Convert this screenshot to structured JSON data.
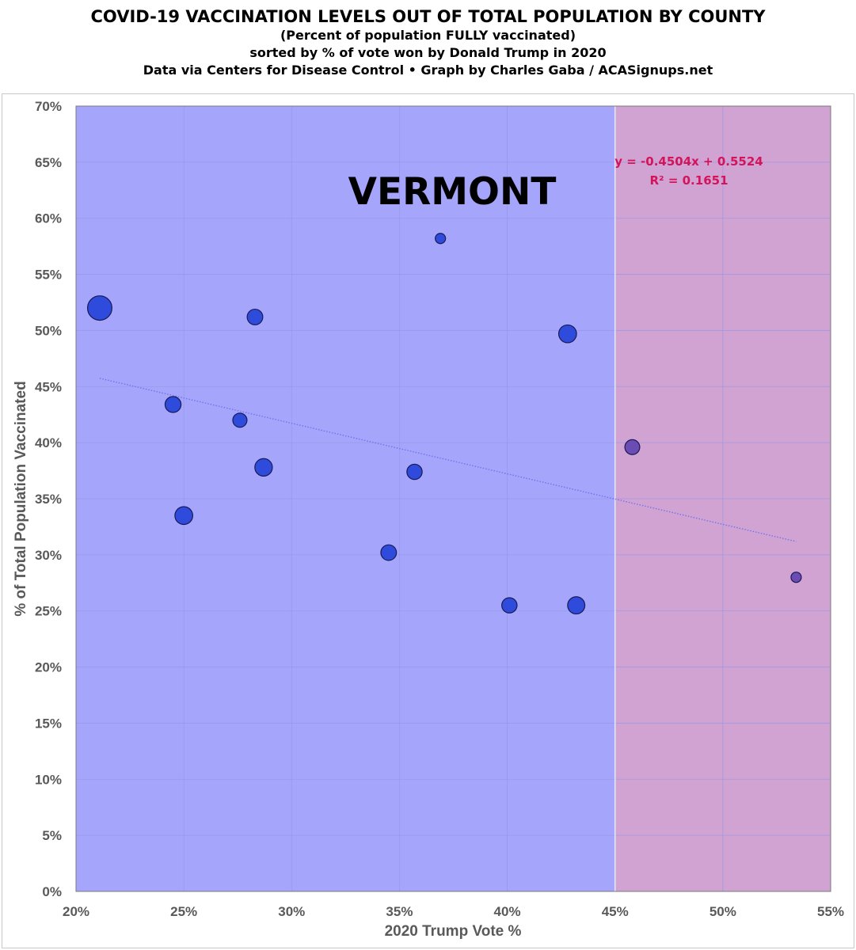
{
  "titles": {
    "line1": "COVID-19 VACCINATION LEVELS OUT OF TOTAL POPULATION BY COUNTY",
    "line2": "(Percent of population FULLY vaccinated)",
    "line3": "sorted by % of vote won by Donald Trump in 2020",
    "line4": "Data via Centers for Disease Control • Graph by Charles Gaba / ACASignups.net"
  },
  "chart_data": {
    "type": "scatter",
    "title": "COVID-19 VACCINATION LEVELS OUT OF TOTAL POPULATION BY COUNTY",
    "annotation": "VERMONT",
    "xlabel": "2020 Trump Vote %",
    "ylabel": "% of Total Population Vaccinated",
    "xlim": [
      0.2,
      0.55
    ],
    "ylim": [
      0,
      0.7
    ],
    "x_ticks": [
      0.2,
      0.25,
      0.3,
      0.35,
      0.4,
      0.45,
      0.5,
      0.55
    ],
    "x_tick_labels": [
      "20%",
      "25%",
      "30%",
      "35%",
      "40%",
      "45%",
      "50%",
      "55%"
    ],
    "y_ticks": [
      0,
      0.05,
      0.1,
      0.15,
      0.2,
      0.25,
      0.3,
      0.35,
      0.4,
      0.45,
      0.5,
      0.55,
      0.6,
      0.65,
      0.7
    ],
    "y_tick_labels": [
      "0%",
      "5%",
      "10%",
      "15%",
      "20%",
      "25%",
      "30%",
      "35%",
      "40%",
      "45%",
      "50%",
      "55%",
      "60%",
      "65%",
      "70%"
    ],
    "grid": true,
    "regions": [
      {
        "from": 0.2,
        "to": 0.45,
        "color": "#a5a5fb"
      },
      {
        "from": 0.45,
        "to": 0.55,
        "color": "#d1a3d2"
      }
    ],
    "bubble_colors": {
      "blue": "#2f4bdc",
      "purple": "#6a4cb4"
    },
    "points": [
      {
        "x": 0.211,
        "y": 0.52,
        "size": 5.6
      },
      {
        "x": 0.245,
        "y": 0.434,
        "size": 2.4
      },
      {
        "x": 0.25,
        "y": 0.335,
        "size": 3.0
      },
      {
        "x": 0.276,
        "y": 0.42,
        "size": 1.9
      },
      {
        "x": 0.283,
        "y": 0.512,
        "size": 2.3
      },
      {
        "x": 0.287,
        "y": 0.378,
        "size": 2.9
      },
      {
        "x": 0.345,
        "y": 0.302,
        "size": 2.3
      },
      {
        "x": 0.357,
        "y": 0.374,
        "size": 2.2
      },
      {
        "x": 0.369,
        "y": 0.582,
        "size": 1.0
      },
      {
        "x": 0.401,
        "y": 0.255,
        "size": 2.2
      },
      {
        "x": 0.428,
        "y": 0.497,
        "size": 3.0
      },
      {
        "x": 0.432,
        "y": 0.255,
        "size": 2.8
      },
      {
        "x": 0.458,
        "y": 0.396,
        "size": 2.1
      },
      {
        "x": 0.534,
        "y": 0.28,
        "size": 1.0
      }
    ],
    "trendline": {
      "slope": -0.4504,
      "intercept": 0.5524,
      "x_range": [
        0.211,
        0.534
      ],
      "color": "#7272ee",
      "equation": "y = -0.4504x + 0.5524",
      "r_squared": "R² = 0.1651",
      "label_color": "#d4145a"
    }
  }
}
